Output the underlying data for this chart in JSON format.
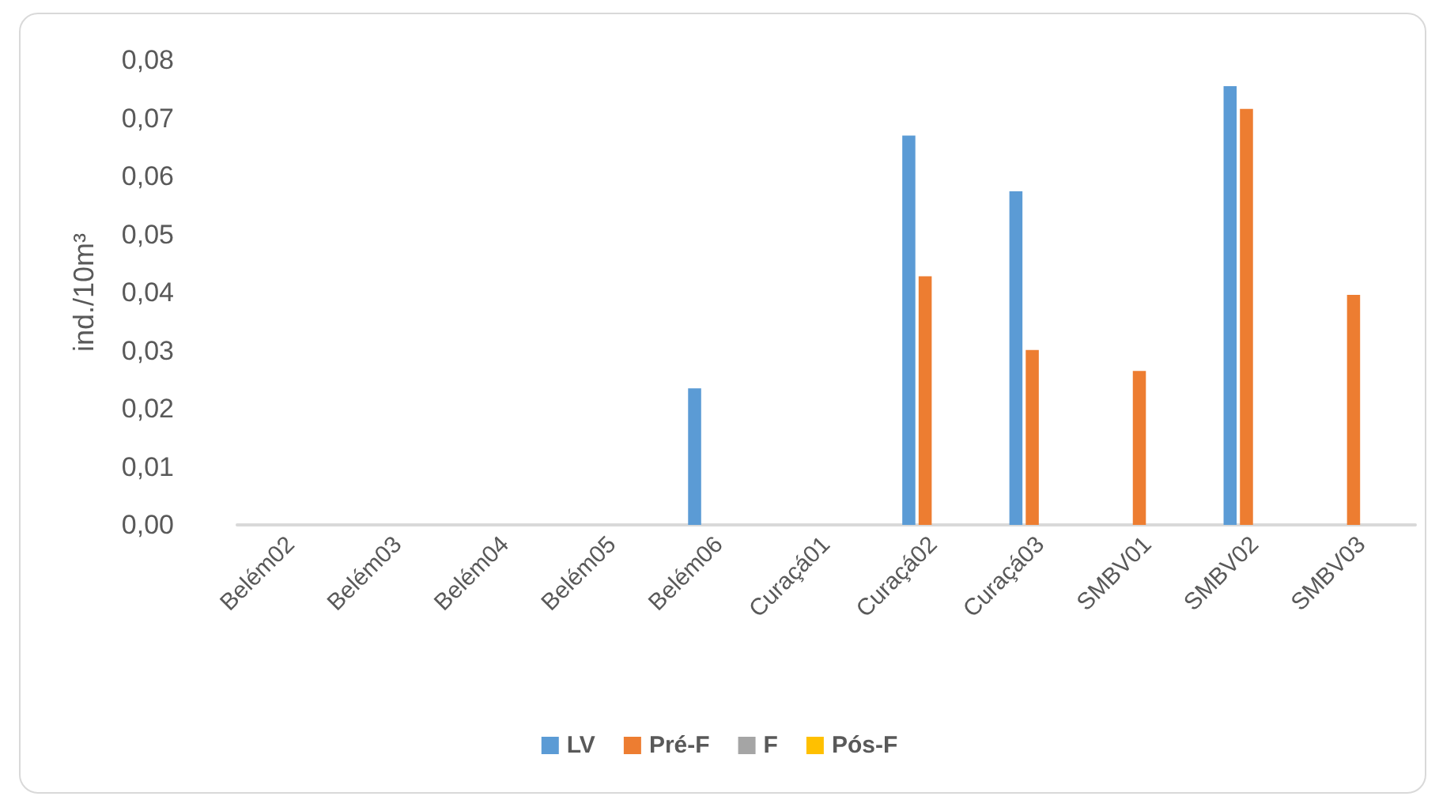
{
  "chart_data": {
    "type": "bar",
    "ylabel": "ind./10m³",
    "categories": [
      "Belém02",
      "Belém03",
      "Belém04",
      "Belém05",
      "Belém06",
      "Curaçá01",
      "Curaçá02",
      "Curaçá03",
      "SMBV01",
      "SMBV02",
      "SMBV03"
    ],
    "series": [
      {
        "name": "LV",
        "color": "#5b9bd5",
        "values": [
          0,
          0,
          0,
          0,
          0.0235,
          0,
          0.067,
          0.0574,
          0,
          0.0755,
          0
        ]
      },
      {
        "name": "Pré-F",
        "color": "#ed7d31",
        "values": [
          0,
          0,
          0,
          0,
          0,
          0,
          0.0428,
          0.0301,
          0.0265,
          0.0716,
          0.0396
        ]
      },
      {
        "name": "F",
        "color": "#a5a5a5",
        "values": [
          0,
          0,
          0,
          0,
          0,
          0,
          0,
          0,
          0,
          0,
          0
        ]
      },
      {
        "name": "Pós-F",
        "color": "#ffc000",
        "values": [
          0,
          0,
          0,
          0,
          0,
          0,
          0,
          0,
          0,
          0,
          0
        ]
      }
    ],
    "ylim": [
      0,
      0.08
    ],
    "yticks": [
      {
        "value": 0,
        "label": "0,00"
      },
      {
        "value": 0.01,
        "label": "0,01"
      },
      {
        "value": 0.02,
        "label": "0,02"
      },
      {
        "value": 0.03,
        "label": "0,03"
      },
      {
        "value": 0.04,
        "label": "0,04"
      },
      {
        "value": 0.05,
        "label": "0,05"
      },
      {
        "value": 0.06,
        "label": "0,06"
      },
      {
        "value": 0.07,
        "label": "0,07"
      },
      {
        "value": 0.08,
        "label": "0,08"
      }
    ],
    "grid": false,
    "legend": "bottom"
  }
}
